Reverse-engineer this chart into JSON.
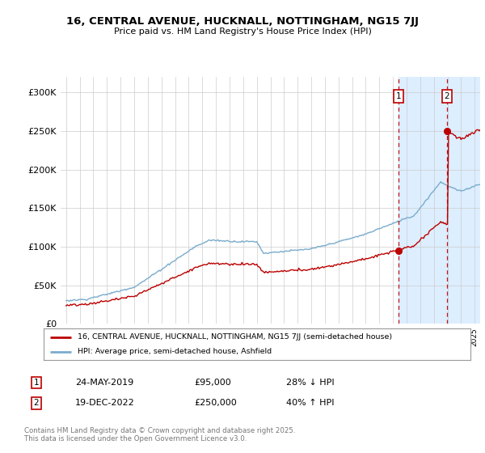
{
  "title1": "16, CENTRAL AVENUE, HUCKNALL, NOTTINGHAM, NG15 7JJ",
  "title2": "Price paid vs. HM Land Registry's House Price Index (HPI)",
  "ylim": [
    0,
    320000
  ],
  "yticks": [
    0,
    50000,
    100000,
    150000,
    200000,
    250000,
    300000
  ],
  "ytick_labels": [
    "£0",
    "£50K",
    "£100K",
    "£150K",
    "£200K",
    "£250K",
    "£300K"
  ],
  "legend_line1": "16, CENTRAL AVENUE, HUCKNALL, NOTTINGHAM, NG15 7JJ (semi-detached house)",
  "legend_line2": "HPI: Average price, semi-detached house, Ashfield",
  "transaction1_date": "24-MAY-2019",
  "transaction1_price": "£95,000",
  "transaction1_hpi": "28% ↓ HPI",
  "transaction2_date": "19-DEC-2022",
  "transaction2_price": "£250,000",
  "transaction2_hpi": "40% ↑ HPI",
  "footnote": "Contains HM Land Registry data © Crown copyright and database right 2025.\nThis data is licensed under the Open Government Licence v3.0.",
  "red_color": "#bb0000",
  "blue_color": "#7aaccc",
  "highlight_color": "#ddeeff",
  "transaction1_x": 2019.39,
  "transaction2_x": 2022.97,
  "transaction1_y": 95000,
  "transaction2_y": 250000,
  "xmin": 1994.6,
  "xmax": 2025.4
}
